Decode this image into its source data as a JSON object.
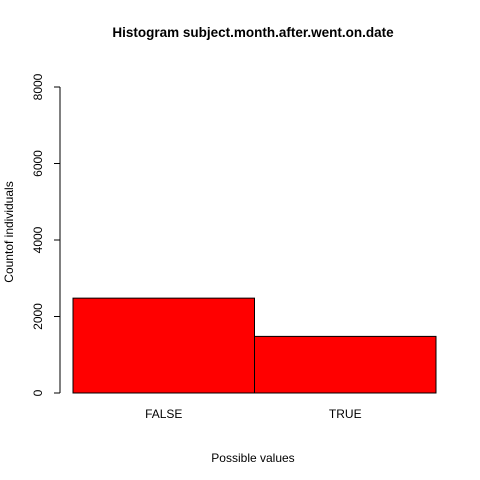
{
  "chart_data": {
    "type": "bar",
    "title": "Histogram subject.month.after.went.on.date",
    "xlabel": "Possible values",
    "ylabel": "Countof individuals",
    "categories": [
      "FALSE",
      "TRUE"
    ],
    "values": [
      2480,
      1480
    ],
    "ylim": [
      0,
      8000
    ],
    "yticks": [
      0,
      2000,
      4000,
      6000,
      8000
    ],
    "grid": false,
    "bar_color": "#ff0000"
  }
}
